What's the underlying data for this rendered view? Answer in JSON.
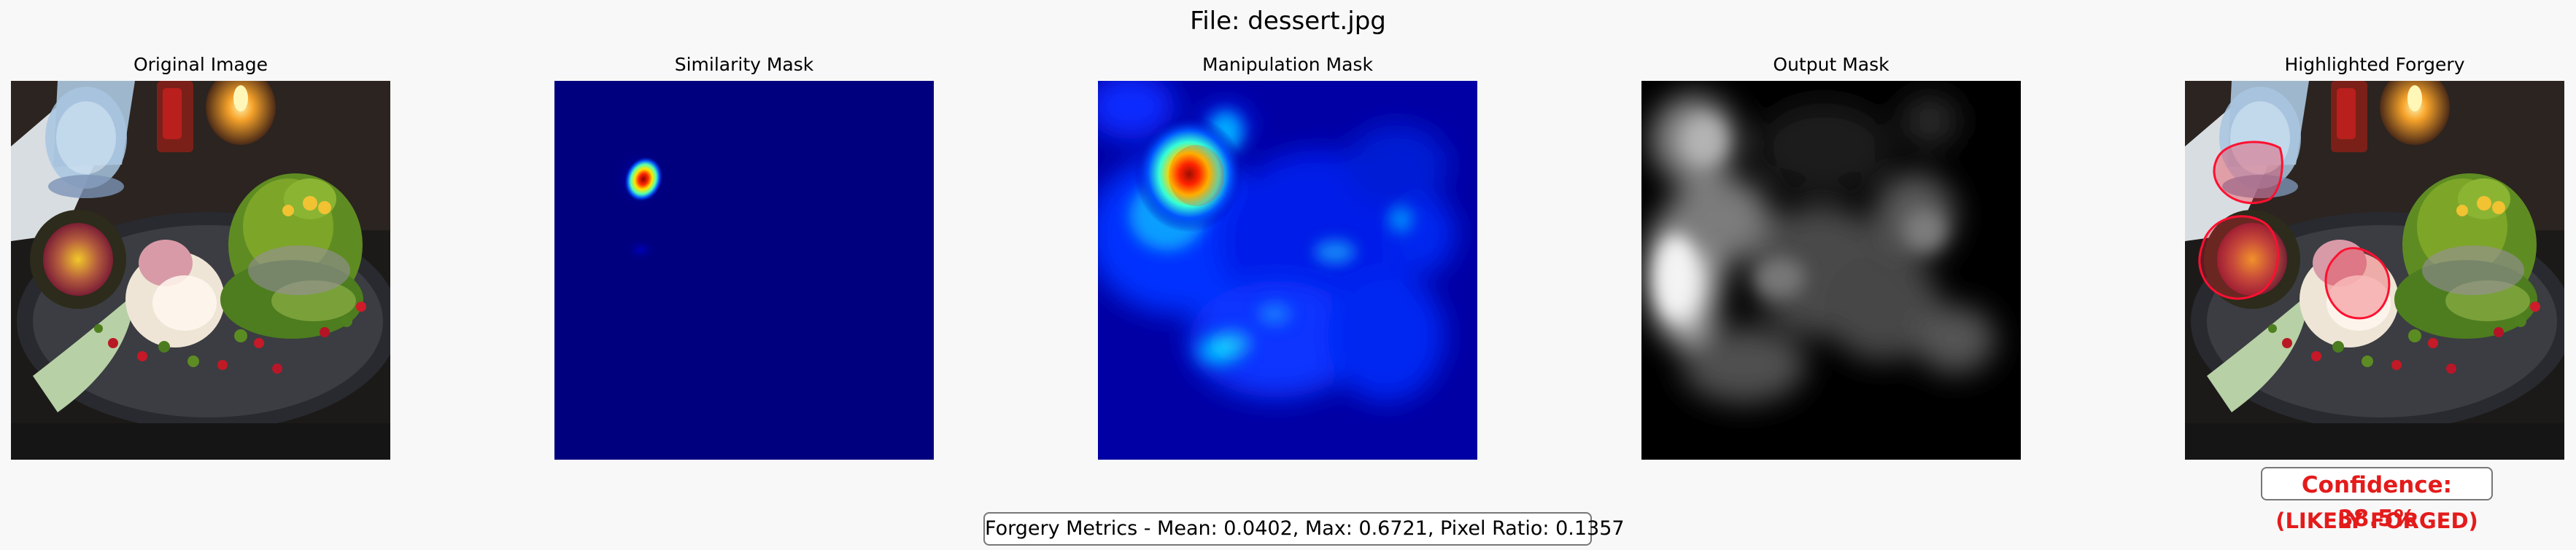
{
  "figure": {
    "title": "File: dessert.jpg"
  },
  "panels": [
    {
      "title": "Original Image"
    },
    {
      "title": "Similarity Mask"
    },
    {
      "title": "Manipulation Mask"
    },
    {
      "title": "Output Mask"
    },
    {
      "title": "Highlighted Forgery"
    }
  ],
  "confidence": {
    "text": "Confidence: 38.5%",
    "status": "(LIKELY FORGED)",
    "color": "#e41b1b"
  },
  "metrics": {
    "text": "Forgery Metrics - Mean: 0.0402, Max: 0.6721, Pixel Ratio: 0.1357"
  }
}
